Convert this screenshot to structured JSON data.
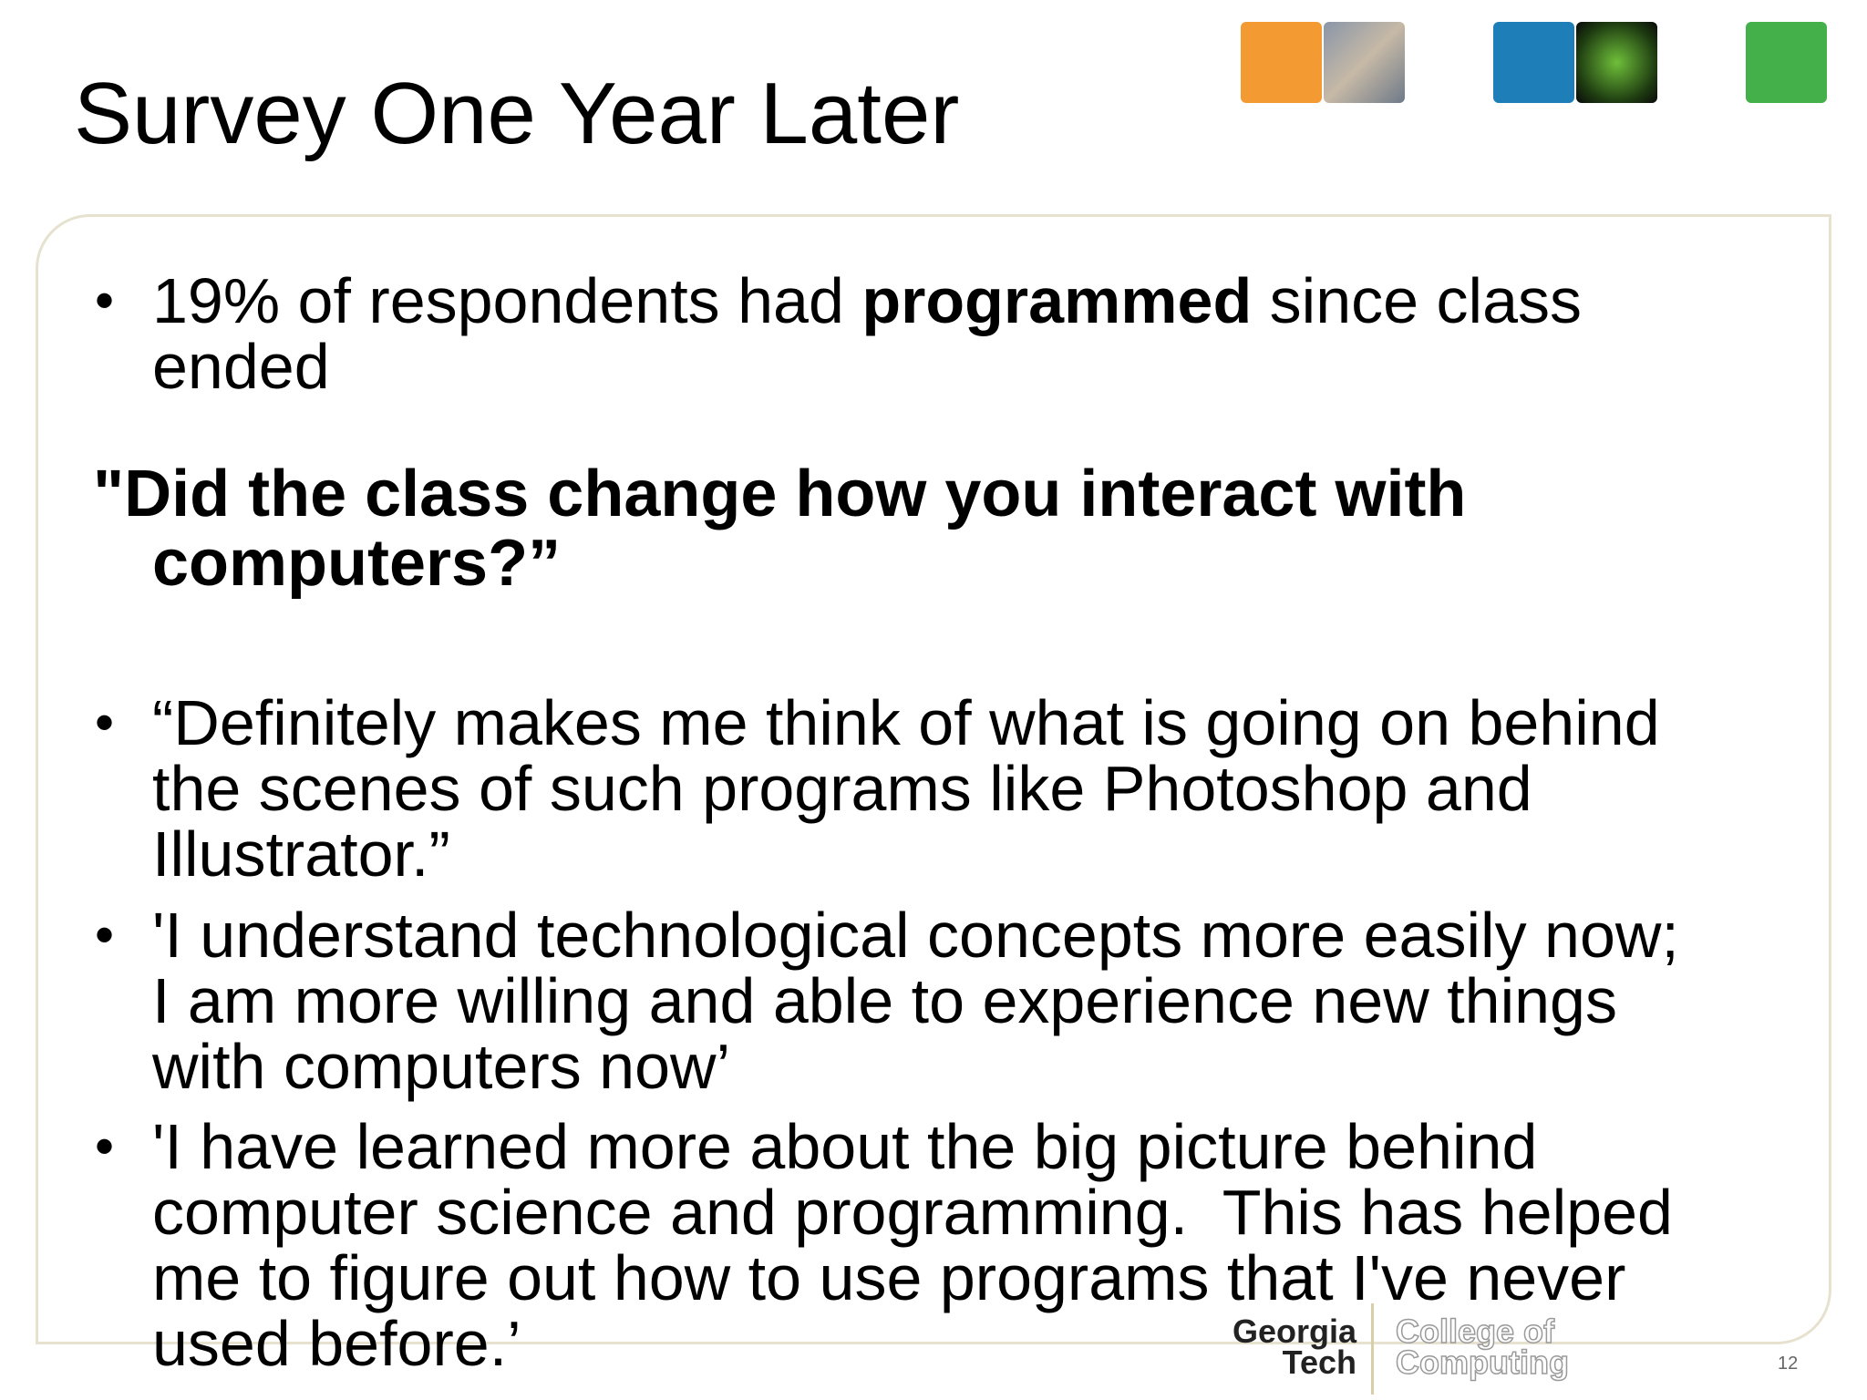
{
  "header": {
    "title": "Survey One Year Later"
  },
  "bullets": [
    {
      "before": "19% of respondents had ",
      "bold": "programmed",
      "after": " since class",
      "cont": "ended"
    }
  ],
  "question": {
    "lines": [
      "\"Did the class change how you interact with",
      "computers?”"
    ]
  },
  "quotes": [
    {
      "lines": [
        "“Definitely makes me think of what is going on behind",
        "the scenes of such programs like Photoshop and",
        "Illustrator.”"
      ]
    },
    {
      "lines": [
        "'I understand technological concepts more easily now;",
        "I am more willing and able to experience new things",
        "with computers now’"
      ]
    },
    {
      "lines": [
        "'I have learned more about the big picture behind",
        "computer science and programming.  This has helped",
        "me to figure out how to use programs that I've never",
        "used before.’"
      ]
    }
  ],
  "footer": {
    "logo_line1": "Georgia",
    "logo_line2": "Tech",
    "college_line1": "College of",
    "college_line2": "Computing",
    "page_number": "12"
  }
}
